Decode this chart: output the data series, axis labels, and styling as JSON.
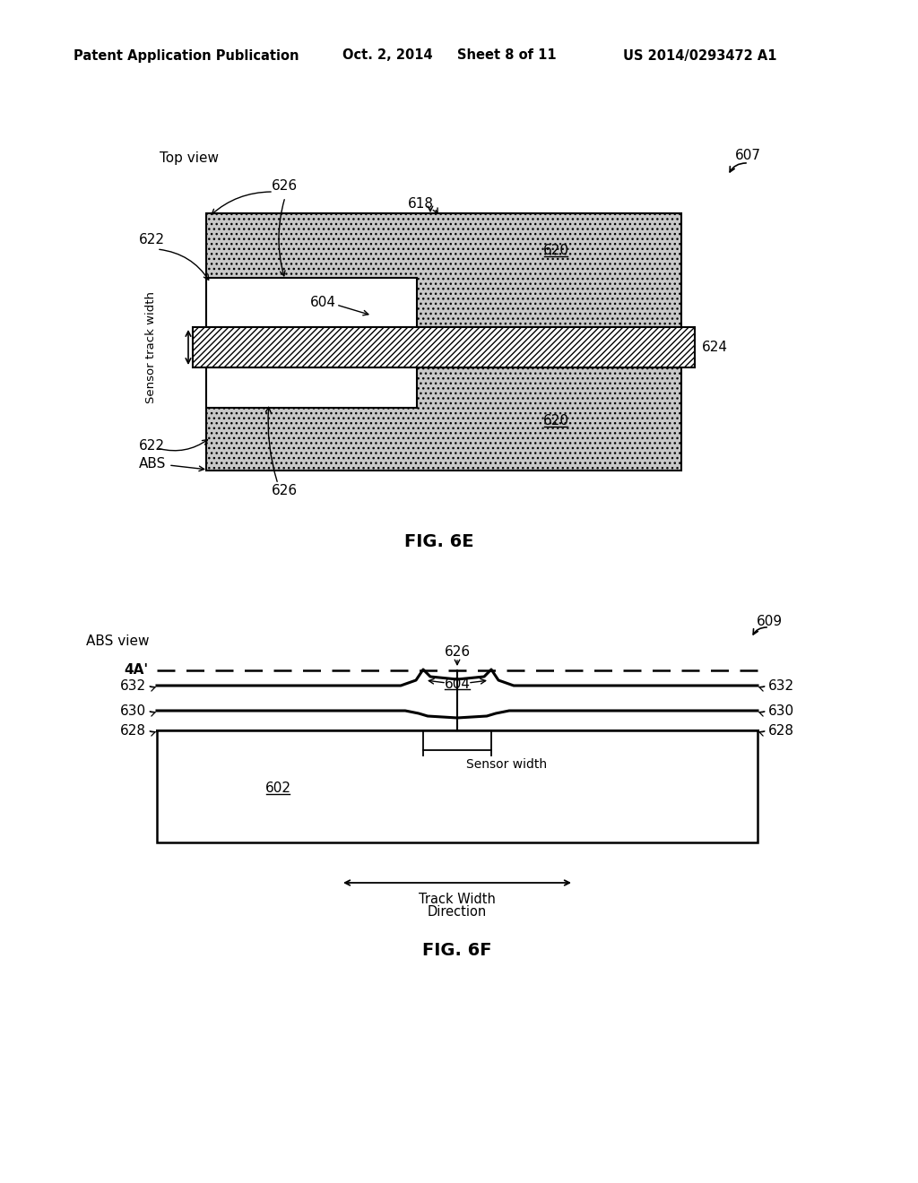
{
  "bg_color": "#ffffff",
  "header_text": "Patent Application Publication",
  "header_date": "Oct. 2, 2014",
  "header_sheet": "Sheet 8 of 11",
  "header_patent": "US 2014/0293472 A1",
  "fig6e_label": "FIG. 6E",
  "fig6f_label": "FIG. 6F",
  "top_view_label": "Top view",
  "abs_view_label": "ABS view",
  "fig6e_num": "607",
  "fig6f_num": "609",
  "stipple_color": "#c8c8c8",
  "hatch_lw": 0.5
}
